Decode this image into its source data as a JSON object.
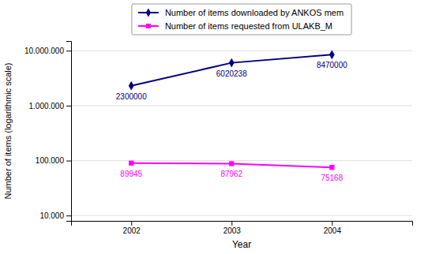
{
  "chart_data": {
    "type": "line",
    "x": [
      2002,
      2003,
      2004
    ],
    "series": [
      {
        "name": "Number of items downloaded by ANKOS mem",
        "color": "#000080",
        "marker": "diamond",
        "values": [
          2300000,
          6020238,
          8470000
        ]
      },
      {
        "name": "Number of items requested from ULAKB_M",
        "color": "#FF00FF",
        "marker": "square",
        "values": [
          89945,
          87962,
          75168
        ]
      }
    ],
    "x_label": "Year",
    "y_label": "Number of items (logarithmic scale)",
    "xlim": [
      2001.4,
      2004.8
    ],
    "xticks": [
      2002,
      2003,
      2004
    ],
    "ylim": [
      8000,
      15000000
    ],
    "yticks": [
      {
        "value": 10000,
        "label": "10.000"
      },
      {
        "value": 100000,
        "label": "100.000"
      },
      {
        "value": 1000000,
        "label": "1.000.000"
      },
      {
        "value": 10000000,
        "label": "10.000.000"
      }
    ],
    "log": "y",
    "grid": true,
    "legend": "top",
    "data_labels": true
  }
}
